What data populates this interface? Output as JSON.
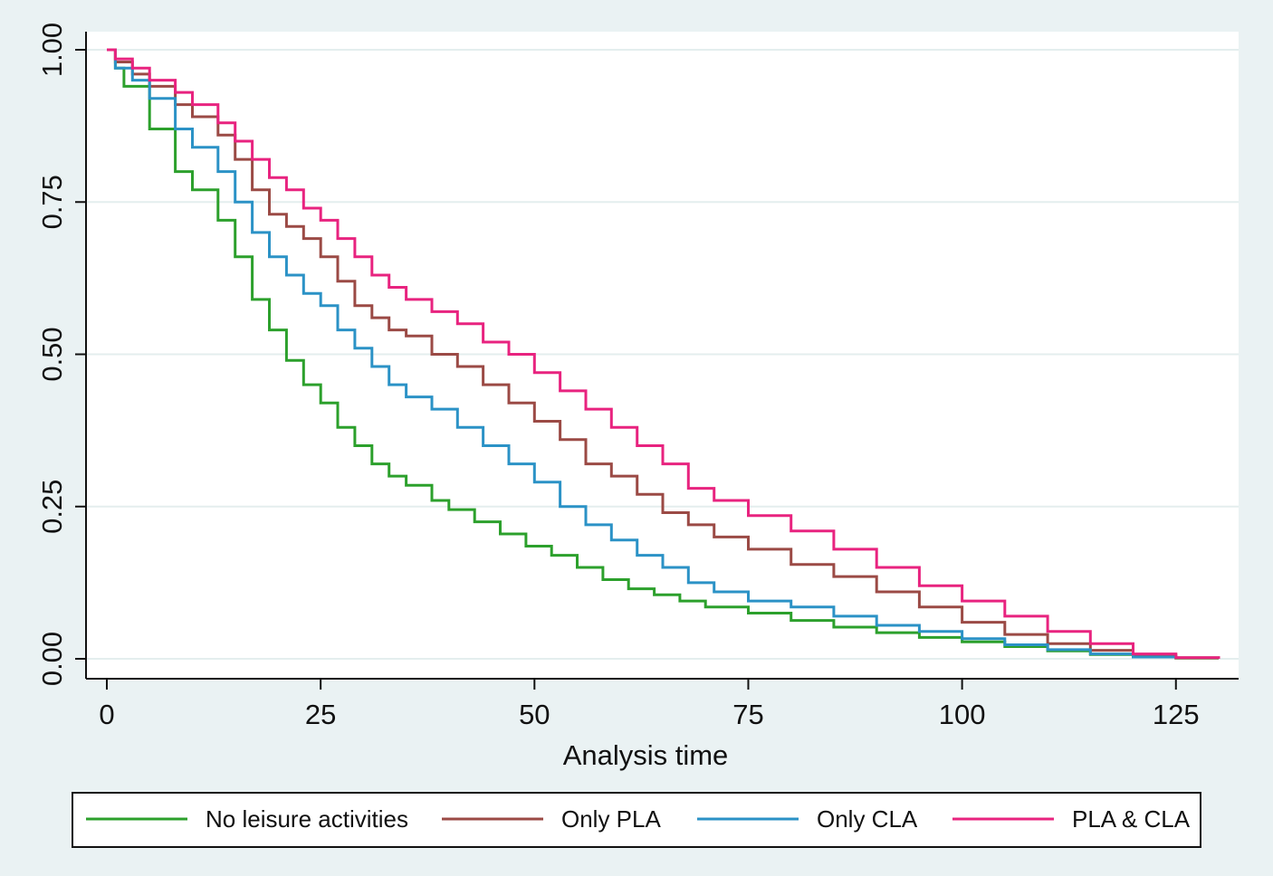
{
  "chart_data": {
    "type": "line",
    "title": "",
    "xlabel": "Analysis time",
    "ylabel": "",
    "xlim": [
      0,
      130
    ],
    "ylim": [
      0,
      1
    ],
    "xticks": [
      "0",
      "25",
      "50",
      "75",
      "100",
      "125"
    ],
    "xtick_values": [
      0,
      25,
      50,
      75,
      100,
      125
    ],
    "yticks": [
      "0.00",
      "0.25",
      "0.50",
      "0.75",
      "1.00"
    ],
    "ytick_values": [
      0,
      0.25,
      0.5,
      0.75,
      1
    ],
    "grid": true,
    "legend_position": "bottom",
    "series": [
      {
        "name": "No leisure activities",
        "color": "#2ca02c",
        "x": [
          0,
          1,
          2,
          5,
          8,
          10,
          13,
          15,
          17,
          19,
          21,
          23,
          25,
          27,
          29,
          31,
          33,
          35,
          38,
          40,
          43,
          46,
          49,
          52,
          55,
          58,
          61,
          64,
          67,
          70,
          75,
          80,
          85,
          90,
          95,
          100,
          105,
          110,
          115,
          120,
          125,
          130
        ],
        "y": [
          1.0,
          0.97,
          0.94,
          0.87,
          0.8,
          0.77,
          0.72,
          0.66,
          0.59,
          0.54,
          0.49,
          0.45,
          0.42,
          0.38,
          0.35,
          0.32,
          0.3,
          0.285,
          0.26,
          0.245,
          0.225,
          0.205,
          0.185,
          0.17,
          0.15,
          0.13,
          0.115,
          0.105,
          0.095,
          0.085,
          0.075,
          0.063,
          0.052,
          0.043,
          0.035,
          0.028,
          0.02,
          0.013,
          0.007,
          0.003,
          0.001,
          0.0
        ]
      },
      {
        "name": "Only PLA",
        "color": "#9b4a45",
        "x": [
          0,
          1,
          3,
          5,
          8,
          10,
          13,
          15,
          17,
          19,
          21,
          23,
          25,
          27,
          29,
          31,
          33,
          35,
          38,
          41,
          44,
          47,
          50,
          53,
          56,
          59,
          62,
          65,
          68,
          71,
          75,
          80,
          85,
          90,
          95,
          100,
          105,
          110,
          115,
          120,
          125,
          130
        ],
        "y": [
          1.0,
          0.98,
          0.96,
          0.94,
          0.91,
          0.89,
          0.86,
          0.82,
          0.77,
          0.73,
          0.71,
          0.69,
          0.66,
          0.62,
          0.58,
          0.56,
          0.54,
          0.53,
          0.5,
          0.48,
          0.45,
          0.42,
          0.39,
          0.36,
          0.32,
          0.3,
          0.27,
          0.24,
          0.22,
          0.2,
          0.18,
          0.155,
          0.135,
          0.11,
          0.085,
          0.06,
          0.04,
          0.025,
          0.014,
          0.006,
          0.002,
          0.0
        ]
      },
      {
        "name": "Only CLA",
        "color": "#2b92c6",
        "x": [
          0,
          1,
          3,
          5,
          8,
          10,
          13,
          15,
          17,
          19,
          21,
          23,
          25,
          27,
          29,
          31,
          33,
          35,
          38,
          41,
          44,
          47,
          50,
          53,
          56,
          59,
          62,
          65,
          68,
          71,
          75,
          80,
          85,
          90,
          95,
          100,
          105,
          110,
          115,
          120,
          125
        ],
        "y": [
          1.0,
          0.97,
          0.95,
          0.92,
          0.87,
          0.84,
          0.8,
          0.75,
          0.7,
          0.66,
          0.63,
          0.6,
          0.58,
          0.54,
          0.51,
          0.48,
          0.45,
          0.43,
          0.41,
          0.38,
          0.35,
          0.32,
          0.29,
          0.25,
          0.22,
          0.195,
          0.17,
          0.15,
          0.125,
          0.11,
          0.095,
          0.085,
          0.07,
          0.055,
          0.045,
          0.033,
          0.023,
          0.015,
          0.008,
          0.003,
          0.0
        ]
      },
      {
        "name": "PLA & CLA",
        "color": "#e8237f",
        "x": [
          0,
          1,
          3,
          5,
          8,
          10,
          13,
          15,
          17,
          19,
          21,
          23,
          25,
          27,
          29,
          31,
          33,
          35,
          38,
          41,
          44,
          47,
          50,
          53,
          56,
          59,
          62,
          65,
          68,
          71,
          75,
          80,
          85,
          90,
          95,
          100,
          105,
          110,
          115,
          120,
          125,
          130
        ],
        "y": [
          1.0,
          0.985,
          0.97,
          0.95,
          0.93,
          0.91,
          0.88,
          0.85,
          0.82,
          0.79,
          0.77,
          0.74,
          0.72,
          0.69,
          0.66,
          0.63,
          0.61,
          0.59,
          0.57,
          0.55,
          0.52,
          0.5,
          0.47,
          0.44,
          0.41,
          0.38,
          0.35,
          0.32,
          0.28,
          0.26,
          0.235,
          0.21,
          0.18,
          0.15,
          0.12,
          0.095,
          0.07,
          0.045,
          0.025,
          0.008,
          0.002,
          0.0
        ]
      }
    ]
  }
}
